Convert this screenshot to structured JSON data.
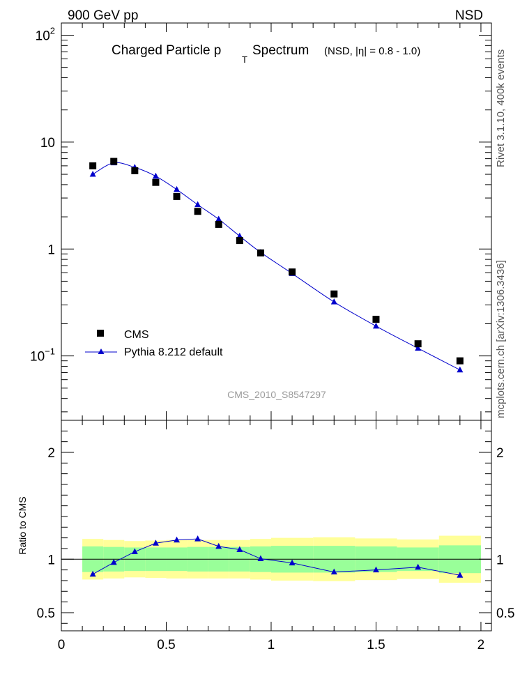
{
  "header": {
    "left": "900 GeV pp",
    "right": "NSD"
  },
  "side_text": {
    "top": "Rivet 3.1.10,  400k events",
    "bottom": "mcplots.cern.ch [arXiv:1306.3436]"
  },
  "chart_data": [
    {
      "type": "scatter",
      "panel": "main",
      "title_main": "Charged Particle p",
      "title_sub": "T",
      "title_rest": "Spectrum",
      "title_note": "(NSD, |η| = 0.8 - 1.0)",
      "watermark": "CMS_2010_S8547297",
      "yscale": "log",
      "ylim": [
        0.025,
        130
      ],
      "xlim": [
        0,
        2.05
      ],
      "y_ticklabels": [
        {
          "value": 100,
          "base": "10",
          "exp": "2"
        },
        {
          "value": 10,
          "base": "10",
          "exp": ""
        },
        {
          "value": 1,
          "base": "1",
          "exp": ""
        },
        {
          "value": 0.1,
          "base": "10",
          "exp": "−1"
        }
      ],
      "legend": [
        "CMS",
        "Pythia 8.212 default"
      ],
      "series": [
        {
          "name": "CMS",
          "marker": "square",
          "color": "#000000",
          "x": [
            0.15,
            0.25,
            0.35,
            0.45,
            0.55,
            0.65,
            0.75,
            0.85,
            0.95,
            1.1,
            1.3,
            1.5,
            1.7,
            1.9
          ],
          "y": [
            6.0,
            6.6,
            5.4,
            4.2,
            3.1,
            2.25,
            1.7,
            1.2,
            0.92,
            0.61,
            0.38,
            0.22,
            0.13,
            0.09
          ]
        },
        {
          "name": "Pythia 8.212 default",
          "marker": "triangle",
          "color": "#0000cc",
          "x": [
            0.15,
            0.25,
            0.35,
            0.45,
            0.55,
            0.65,
            0.75,
            0.85,
            0.95,
            1.1,
            1.3,
            1.5,
            1.7,
            1.9
          ],
          "y": [
            5.0,
            6.4,
            5.8,
            4.8,
            3.6,
            2.6,
            1.9,
            1.32,
            0.93,
            0.59,
            0.32,
            0.19,
            0.118,
            0.074
          ]
        }
      ]
    },
    {
      "type": "line",
      "panel": "ratio",
      "ylabel": "Ratio to CMS",
      "ylim": [
        0.33,
        2.3
      ],
      "xlim": [
        0,
        2.05
      ],
      "y_ticklabels": [
        "2",
        "1",
        "0.5"
      ],
      "x_ticklabels": [
        "0",
        "0.5",
        "1",
        "1.5",
        "2"
      ],
      "band_edges": [
        0.1,
        0.2,
        0.3,
        0.4,
        0.5,
        0.6,
        0.7,
        0.8,
        0.9,
        1.0,
        1.2,
        1.4,
        1.6,
        1.8,
        2.0
      ],
      "band_inner": [
        0.12,
        0.115,
        0.11,
        0.11,
        0.11,
        0.115,
        0.115,
        0.115,
        0.12,
        0.125,
        0.125,
        0.12,
        0.11,
        0.13
      ],
      "band_outer": [
        0.19,
        0.18,
        0.17,
        0.175,
        0.18,
        0.18,
        0.18,
        0.18,
        0.19,
        0.2,
        0.205,
        0.195,
        0.185,
        0.22
      ],
      "series": [
        {
          "name": "Pythia 8.212 default",
          "color": "#0000cc",
          "x": [
            0.15,
            0.25,
            0.35,
            0.45,
            0.55,
            0.65,
            0.75,
            0.85,
            0.95,
            1.1,
            1.3,
            1.5,
            1.7,
            1.9
          ],
          "y": [
            0.86,
            0.97,
            1.07,
            1.15,
            1.18,
            1.19,
            1.12,
            1.09,
            1.005,
            0.965,
            0.88,
            0.9,
            0.925,
            0.85
          ]
        }
      ]
    }
  ]
}
